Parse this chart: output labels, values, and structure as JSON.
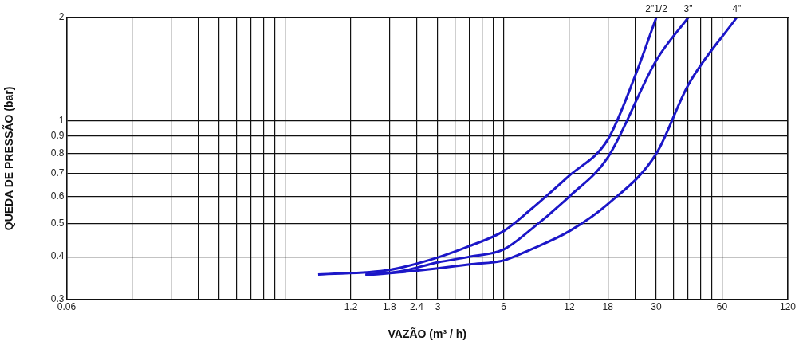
{
  "chart_data": {
    "type": "line",
    "xlabel": "VAZÃO (m³ / h)",
    "ylabel": "QUEDA DE PRESSÃO (bar)",
    "log": "xy",
    "grid": true,
    "legend": false,
    "marker": "none",
    "line_style": "solid",
    "xlim": [
      0.06,
      120
    ],
    "ylim": [
      0.3,
      2
    ],
    "xticks": [
      0.06,
      {
        "value": 0.12,
        "label": null
      },
      {
        "value": 0.18,
        "label": null
      },
      {
        "value": 0.24,
        "label": null
      },
      {
        "value": 0.3,
        "label": null
      },
      {
        "value": 0.36,
        "label": null
      },
      {
        "value": 0.42,
        "label": null
      },
      {
        "value": 0.48,
        "label": null
      },
      {
        "value": 0.54,
        "label": null
      },
      {
        "value": 0.6,
        "label": null
      },
      1.2,
      1.8,
      2.4,
      3,
      {
        "value": 3.6,
        "label": null
      },
      {
        "value": 4.2,
        "label": null
      },
      {
        "value": 4.8,
        "label": null
      },
      {
        "value": 5.4,
        "label": null
      },
      6,
      12,
      18,
      {
        "value": 24,
        "label": null
      },
      30,
      {
        "value": 36,
        "label": null
      },
      {
        "value": 42,
        "label": null
      },
      {
        "value": 48,
        "label": null
      },
      {
        "value": 54,
        "label": null
      },
      60,
      120
    ],
    "yticks": [
      0.3,
      0.4,
      0.5,
      0.6,
      0.7,
      0.8,
      0.9,
      1,
      2
    ],
    "series": [
      {
        "name": "2\"1/2",
        "color": "#1c17c8",
        "x": [
          0.85,
          1.8,
          3,
          4.2,
          6,
          8,
          12,
          18,
          24,
          30
        ],
        "values": [
          0.355,
          0.366,
          0.398,
          0.43,
          0.475,
          0.55,
          0.69,
          0.88,
          1.35,
          2
        ]
      },
      {
        "name": "3\"",
        "color": "#1c17c8",
        "x": [
          1.4,
          2,
          3,
          4.2,
          6,
          8,
          12,
          18,
          30,
          42
        ],
        "values": [
          0.355,
          0.362,
          0.385,
          0.4,
          0.42,
          0.48,
          0.6,
          0.78,
          1.5,
          2
        ]
      },
      {
        "name": "4\"",
        "color": "#1c17c8",
        "x": [
          1.4,
          2,
          3,
          4.2,
          6,
          8,
          12,
          18,
          30,
          42,
          70
        ],
        "values": [
          0.353,
          0.36,
          0.37,
          0.38,
          0.39,
          0.42,
          0.475,
          0.57,
          0.8,
          1.27,
          2
        ]
      }
    ]
  }
}
